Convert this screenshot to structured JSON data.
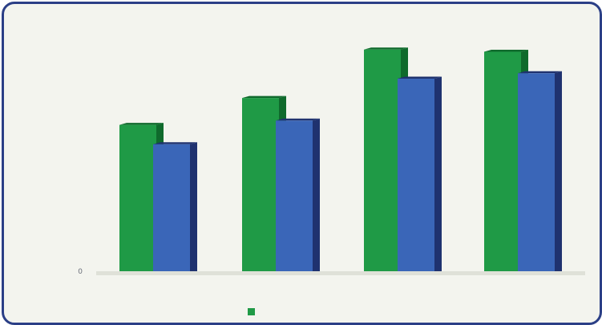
{
  "chart_data": {
    "type": "bar",
    "title": "",
    "xlabel": "",
    "ylabel": "",
    "categories": [
      "",
      "",
      "",
      ""
    ],
    "series": [
      {
        "color": "#1f9a46",
        "shadow": "#0f6a2c",
        "values": [
          6800,
          8050,
          10300,
          10200
        ]
      },
      {
        "color": "#3a66b8",
        "shadow": "#1f326f",
        "values": [
          5900,
          7000,
          8950,
          9200
        ]
      }
    ],
    "ylim": [
      0,
      11000
    ],
    "yticks": [
      0,
      1000,
      2000,
      3000,
      4000,
      5000,
      6000,
      7000,
      8000,
      9000,
      10000,
      11000
    ],
    "ytick_labels": [
      "0",
      "",
      "",
      "",
      "",
      "",
      "",
      "",
      "",
      "",
      "",
      ""
    ],
    "legend": {
      "text": "",
      "placement": "bottom-center"
    },
    "grid": false,
    "background": "#f3f4ee",
    "frame_color": "#2b3f86"
  }
}
